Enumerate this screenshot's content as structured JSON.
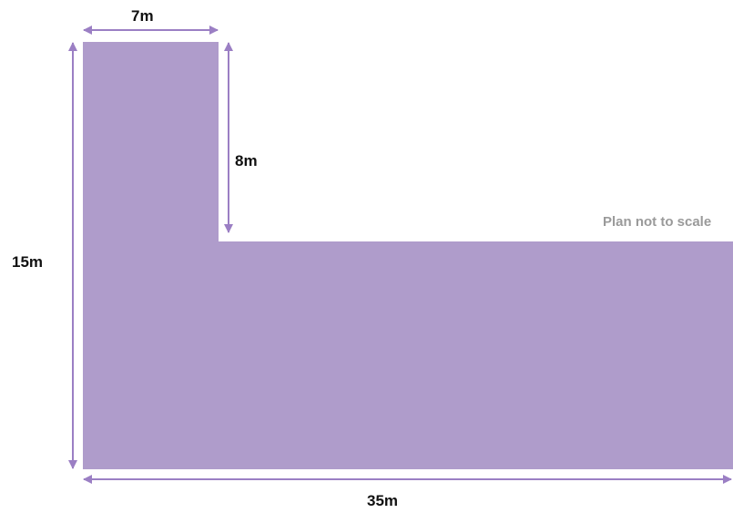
{
  "diagram": {
    "shape_name": "L-shaped plan",
    "colors": {
      "fill": "#af9ccb",
      "arrow": "#9b7fc4",
      "note_text": "#9a9a9a",
      "label_text": "#111111"
    },
    "dimensions": {
      "top_width": "7m",
      "inner_height": "8m",
      "total_height": "15m",
      "total_width": "35m"
    },
    "note": "Plan not to scale"
  }
}
